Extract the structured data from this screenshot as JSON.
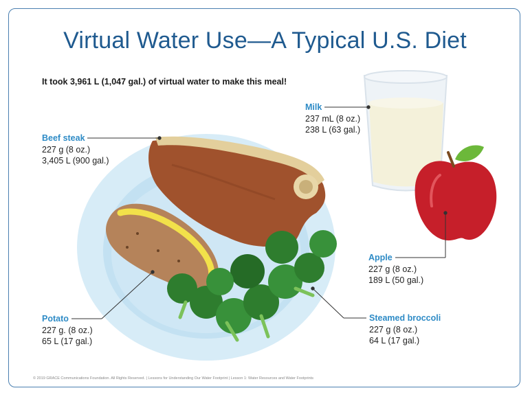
{
  "title": "Virtual Water Use—A Typical U.S. Diet",
  "subtitle": "It took 3,961 L (1,047 gal.) of virtual water to make this meal!",
  "items": {
    "beef": {
      "name": "Beef steak",
      "amount": "227 g (8 oz.)",
      "water": "3,405 L (900 gal.)"
    },
    "milk": {
      "name": "Milk",
      "amount": "237 mL (8 oz.)",
      "water": "238 L (63 gal.)"
    },
    "apple": {
      "name": "Apple",
      "amount": "227 g (8 oz.)",
      "water": "189 L (50 gal.)"
    },
    "potato": {
      "name": "Potato",
      "amount": "227 g. (8 oz.)",
      "water": "65 L (17 gal.)"
    },
    "broccoli": {
      "name": "Steamed broccoli",
      "amount": "227 g (8 oz.)",
      "water": "64 L (17 gal.)"
    }
  },
  "footer": "© 2019 GRACE Communications Foundation. All Rights Reserved.  |  Lessons for Understanding Our Water Footprint  |  Lesson 1: Water Resources and Water Footprints",
  "colors": {
    "title": "#1f5a8f",
    "label_name": "#2e8bc6",
    "frame": "#4a7fb0",
    "plate": "#cfe7f5",
    "apple": "#c8202a",
    "broccoli": "#2e7d2e"
  }
}
